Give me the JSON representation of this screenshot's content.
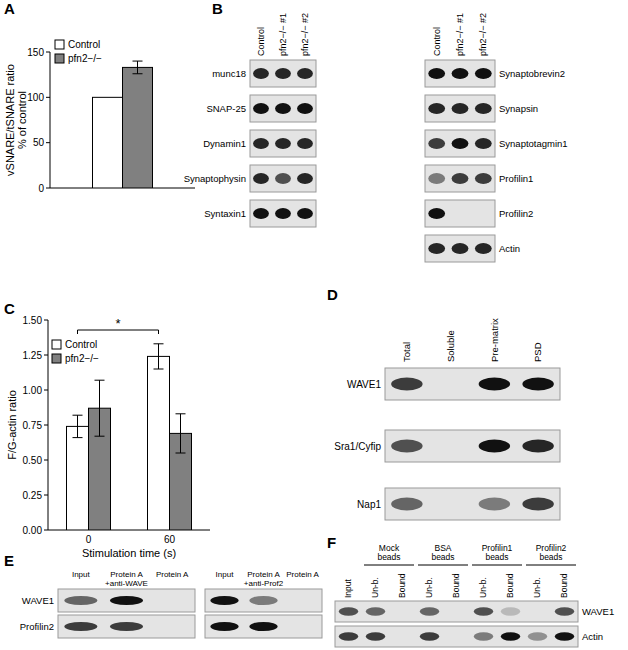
{
  "chart_data": [
    {
      "type": "bar",
      "title": "A",
      "y_label": [
        "vSNARE/tSNARE ratio",
        "% of control"
      ],
      "categories": [
        null
      ],
      "series": [
        {
          "name": "Control",
          "color": "#ffffff",
          "values": [
            100
          ]
        },
        {
          "name": "pfn2−/−",
          "color": "#808080",
          "values": [
            133
          ],
          "errors": [
            7
          ]
        }
      ],
      "ylim": [
        0,
        150
      ],
      "yticks": [
        0,
        50,
        100,
        150
      ],
      "grid": false,
      "legend": "top-left"
    },
    {
      "type": "bar",
      "title": "C",
      "x_label": "Stimulation time (s)",
      "y_label": "F/G-actin ratio",
      "categories": [
        "0",
        "60"
      ],
      "series": [
        {
          "name": "Control",
          "color": "#ffffff",
          "values": [
            0.74,
            1.24
          ],
          "errors": [
            0.08,
            0.09
          ]
        },
        {
          "name": "pfn2−/−",
          "color": "#808080",
          "values": [
            0.87,
            0.69
          ],
          "errors": [
            0.2,
            0.14
          ]
        }
      ],
      "ylim": [
        0,
        1.5
      ],
      "yticks": [
        {
          "value": 0,
          "label": "0.00"
        },
        {
          "value": 0.25,
          "label": "0.25"
        },
        {
          "value": 0.5,
          "label": "0.50"
        },
        {
          "value": 0.75,
          "label": "0.75"
        },
        {
          "value": 1,
          "label": "1.00"
        },
        {
          "value": 1.25,
          "label": "1.25"
        },
        {
          "value": 1.5,
          "label": "1.50"
        }
      ],
      "grid": false,
      "legend": "top-left",
      "annotations": [
        "*"
      ]
    }
  ],
  "blots": [
    {
      "panel": "B",
      "groups": [
        {
          "lanes": [
            "Control",
            "pfn2−/− #1",
            "pfn2−/− #2"
          ],
          "rows": [
            {
              "label": "munc18",
              "bands": [
                0.9,
                0.9,
                0.9
              ]
            },
            {
              "label": "SNAP-25",
              "bands": [
                1,
                1,
                1
              ]
            },
            {
              "label": "Dynamin1",
              "bands": [
                0.9,
                0.9,
                0.9
              ]
            },
            {
              "label": "Synaptophysin",
              "bands": [
                0.9,
                0.7,
                0.9
              ]
            },
            {
              "label": "Syntaxin1",
              "bands": [
                1,
                1,
                1
              ]
            }
          ]
        },
        {
          "lanes": [
            "Control",
            "pfn2−/− #1",
            "pfn2−/− #2"
          ],
          "rows": [
            {
              "label": "Synaptobrevin2",
              "bands": [
                1,
                1,
                1
              ]
            },
            {
              "label": "Synapsin",
              "bands": [
                0.9,
                0.9,
                0.9
              ]
            },
            {
              "label": "Synaptotagmin1",
              "bands": [
                0.8,
                1,
                0.9
              ]
            },
            {
              "label": "Profilin1",
              "bands": [
                0.5,
                0.8,
                0.8
              ]
            },
            {
              "label": "Profilin2",
              "bands": [
                1,
                0,
                0
              ]
            },
            {
              "label": "Actin",
              "bands": [
                0.9,
                0.9,
                0.9
              ]
            }
          ]
        }
      ]
    },
    {
      "panel": "D",
      "groups": [
        {
          "lanes": [
            "Total",
            "Soluble",
            "Pre-matrix",
            "PSD"
          ],
          "rows": [
            {
              "label": "WAVE1",
              "bands": [
                0.8,
                0,
                1,
                1
              ]
            },
            {
              "label": "Sra1/Cyfip",
              "bands": [
                0.7,
                0,
                1,
                0.9
              ]
            },
            {
              "label": "Nap1",
              "bands": [
                0.6,
                0,
                0.5,
                0.8
              ]
            }
          ]
        }
      ]
    },
    {
      "panel": "E",
      "groups": [
        {
          "lanes": [
            "Input",
            [
              "Protein A",
              "+anti-WAVE"
            ],
            "Protein A"
          ],
          "rows": [
            {
              "label": "WAVE1",
              "bands": [
                0.6,
                1,
                0
              ]
            },
            {
              "label": "Profilin2",
              "bands": [
                0.8,
                0.8,
                0
              ]
            }
          ]
        },
        {
          "lanes": [
            "Input",
            [
              "Protein A",
              "+anti-Prof2"
            ],
            "Protein A"
          ],
          "rows": [
            {
              "bands": [
                1,
                0.5,
                0
              ]
            },
            {
              "bands": [
                1,
                1,
                0
              ]
            }
          ]
        }
      ]
    },
    {
      "panel": "F",
      "bead_groups": [
        [
          "Mock",
          "beads"
        ],
        [
          "BSA",
          "beads"
        ],
        [
          "Profilin1",
          "beads"
        ],
        [
          "Profilin2",
          "beads"
        ]
      ],
      "groups": [
        {
          "lanes": [
            "Input",
            "Un-b.",
            "Bound",
            "Un-b.",
            "Bound",
            "Un-b.",
            "Bound",
            "Un-b.",
            "Bound"
          ],
          "rows": [
            {
              "label": "WAVE1",
              "bands": [
                0.7,
                0.6,
                0,
                0.6,
                0,
                0.7,
                0.2,
                0,
                0.7
              ]
            },
            {
              "label": "Actin",
              "bands": [
                0.8,
                0.8,
                0,
                0.8,
                0,
                0.5,
                1,
                0.4,
                1
              ]
            }
          ]
        }
      ]
    }
  ]
}
